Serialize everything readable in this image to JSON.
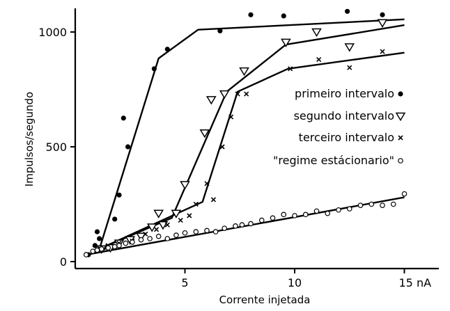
{
  "chart_data": {
    "type": "scatter",
    "title": "",
    "xlabel": "Corrente injetada",
    "ylabel": "Impulsos/segundo",
    "x_unit": "nA",
    "xlim": [
      0,
      16
    ],
    "ylim": [
      -30,
      1100
    ],
    "x_ticks": [
      {
        "value": 5,
        "label": "5"
      },
      {
        "value": 10,
        "label": "10"
      },
      {
        "value": 15,
        "label": "15 nA"
      }
    ],
    "y_ticks": [
      {
        "value": 0,
        "label": "0"
      },
      {
        "value": 500,
        "label": "500"
      },
      {
        "value": 1000,
        "label": "1000"
      }
    ],
    "grid": false,
    "legend_position": "right",
    "series": [
      {
        "name": "primeiro intervalo",
        "marker": "filled-circle",
        "points": [
          [
            0.6,
            30
          ],
          [
            0.9,
            70
          ],
          [
            1.0,
            130
          ],
          [
            1.1,
            100
          ],
          [
            1.3,
            60
          ],
          [
            1.8,
            185
          ],
          [
            2.0,
            290
          ],
          [
            2.2,
            625
          ],
          [
            2.4,
            500
          ],
          [
            3.6,
            840
          ],
          [
            4.2,
            925
          ],
          [
            6.6,
            1005
          ],
          [
            8.0,
            1075
          ],
          [
            9.5,
            1070
          ],
          [
            12.4,
            1090
          ],
          [
            14.0,
            1075
          ]
        ],
        "fit": [
          [
            1.1,
            55
          ],
          [
            3.8,
            885
          ],
          [
            5.6,
            1010
          ],
          [
            15.0,
            1055
          ]
        ]
      },
      {
        "name": "segundo intervalo",
        "marker": "open-triangle",
        "points": [
          [
            1.2,
            55
          ],
          [
            1.6,
            60
          ],
          [
            2.0,
            80
          ],
          [
            2.5,
            95
          ],
          [
            3.0,
            110
          ],
          [
            3.5,
            150
          ],
          [
            4.0,
            160
          ],
          [
            4.6,
            210
          ],
          [
            5.0,
            335
          ],
          [
            3.8,
            210
          ],
          [
            5.9,
            560
          ],
          [
            6.2,
            705
          ],
          [
            6.8,
            730
          ],
          [
            7.7,
            830
          ],
          [
            9.6,
            955
          ],
          [
            11.0,
            1000
          ],
          [
            12.5,
            935
          ],
          [
            14.0,
            1040
          ]
        ],
        "fit": [
          [
            1.1,
            55
          ],
          [
            4.4,
            190
          ],
          [
            6.9,
            740
          ],
          [
            9.6,
            945
          ],
          [
            15.0,
            1030
          ]
        ]
      },
      {
        "name": "terceiro intervalo",
        "marker": "x",
        "points": [
          [
            1.0,
            55
          ],
          [
            1.5,
            70
          ],
          [
            2.0,
            80
          ],
          [
            2.6,
            90
          ],
          [
            3.2,
            120
          ],
          [
            3.7,
            140
          ],
          [
            4.2,
            160
          ],
          [
            4.8,
            180
          ],
          [
            5.2,
            200
          ],
          [
            5.5,
            250
          ],
          [
            6.0,
            340
          ],
          [
            6.3,
            270
          ],
          [
            6.7,
            500
          ],
          [
            7.1,
            630
          ],
          [
            7.4,
            730
          ],
          [
            7.8,
            730
          ],
          [
            9.8,
            840
          ],
          [
            11.1,
            880
          ],
          [
            12.5,
            845
          ],
          [
            14.0,
            915
          ]
        ],
        "fit": [
          [
            1.1,
            55
          ],
          [
            5.8,
            260
          ],
          [
            7.4,
            740
          ],
          [
            9.7,
            840
          ],
          [
            15.0,
            910
          ]
        ]
      },
      {
        "name": "\"regime estácionario\"",
        "marker": "open-circle",
        "points": [
          [
            0.5,
            30
          ],
          [
            0.8,
            45
          ],
          [
            1.0,
            50
          ],
          [
            1.2,
            55
          ],
          [
            1.5,
            60
          ],
          [
            1.8,
            65
          ],
          [
            2.0,
            70
          ],
          [
            2.3,
            80
          ],
          [
            2.6,
            85
          ],
          [
            3.0,
            95
          ],
          [
            3.4,
            100
          ],
          [
            3.8,
            110
          ],
          [
            4.2,
            100
          ],
          [
            4.6,
            115
          ],
          [
            5.0,
            125
          ],
          [
            5.5,
            130
          ],
          [
            6.0,
            135
          ],
          [
            6.4,
            130
          ],
          [
            6.8,
            145
          ],
          [
            7.3,
            155
          ],
          [
            7.6,
            160
          ],
          [
            8.0,
            165
          ],
          [
            8.5,
            180
          ],
          [
            9.0,
            190
          ],
          [
            9.5,
            205
          ],
          [
            10.0,
            200
          ],
          [
            10.5,
            205
          ],
          [
            11.0,
            220
          ],
          [
            11.5,
            210
          ],
          [
            12.0,
            225
          ],
          [
            12.5,
            230
          ],
          [
            13.0,
            245
          ],
          [
            13.5,
            250
          ],
          [
            14.0,
            245
          ],
          [
            14.5,
            250
          ],
          [
            15.0,
            295
          ]
        ],
        "fit": [
          [
            0.5,
            30
          ],
          [
            15.0,
            280
          ]
        ]
      }
    ]
  }
}
